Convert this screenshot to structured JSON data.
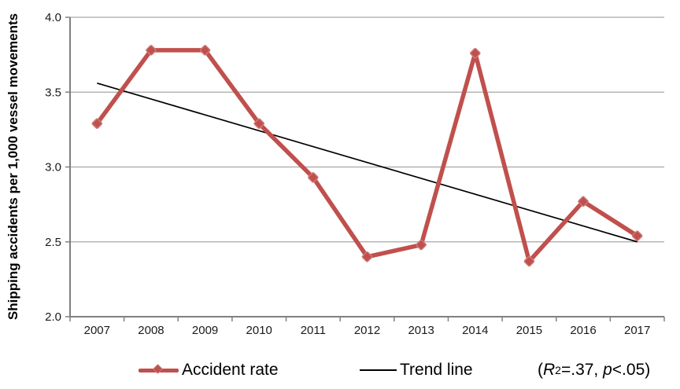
{
  "chart_data": {
    "type": "line",
    "title": "",
    "xlabel": "",
    "ylabel": "Shipping accidents per 1,000 vessel movements",
    "categories": [
      "2007",
      "2008",
      "2009",
      "2010",
      "2011",
      "2012",
      "2013",
      "2014",
      "2015",
      "2016",
      "2017"
    ],
    "series": [
      {
        "name": "Accident rate",
        "values": [
          3.29,
          3.78,
          3.78,
          3.29,
          2.93,
          2.4,
          2.48,
          3.76,
          2.37,
          2.77,
          2.54
        ]
      },
      {
        "name": "Trend line",
        "kind": "linear-trend",
        "start": 3.56,
        "end": 2.5
      }
    ],
    "ylim": [
      2.0,
      4.0
    ],
    "y_ticks": [
      "2.0",
      "2.5",
      "3.0",
      "3.5",
      "4.0"
    ],
    "grid": "horizontal",
    "legend_position": "bottom",
    "annotation_text": "(R²=.37, p<.05)",
    "colors": {
      "series": "#c0504d",
      "marker_halo": "#cc7a78",
      "trend": "#000000",
      "grid": "#a6a6a6",
      "axis": "#808080",
      "text": "#1a1a1a"
    }
  },
  "legend": {
    "items": [
      {
        "label": "Accident rate"
      },
      {
        "label": "Trend line"
      }
    ]
  },
  "annotation": {
    "open": "(",
    "r": "R",
    "r_exp": "2",
    "eq": "=.37, ",
    "p": "p",
    "rest": "<.05)"
  }
}
